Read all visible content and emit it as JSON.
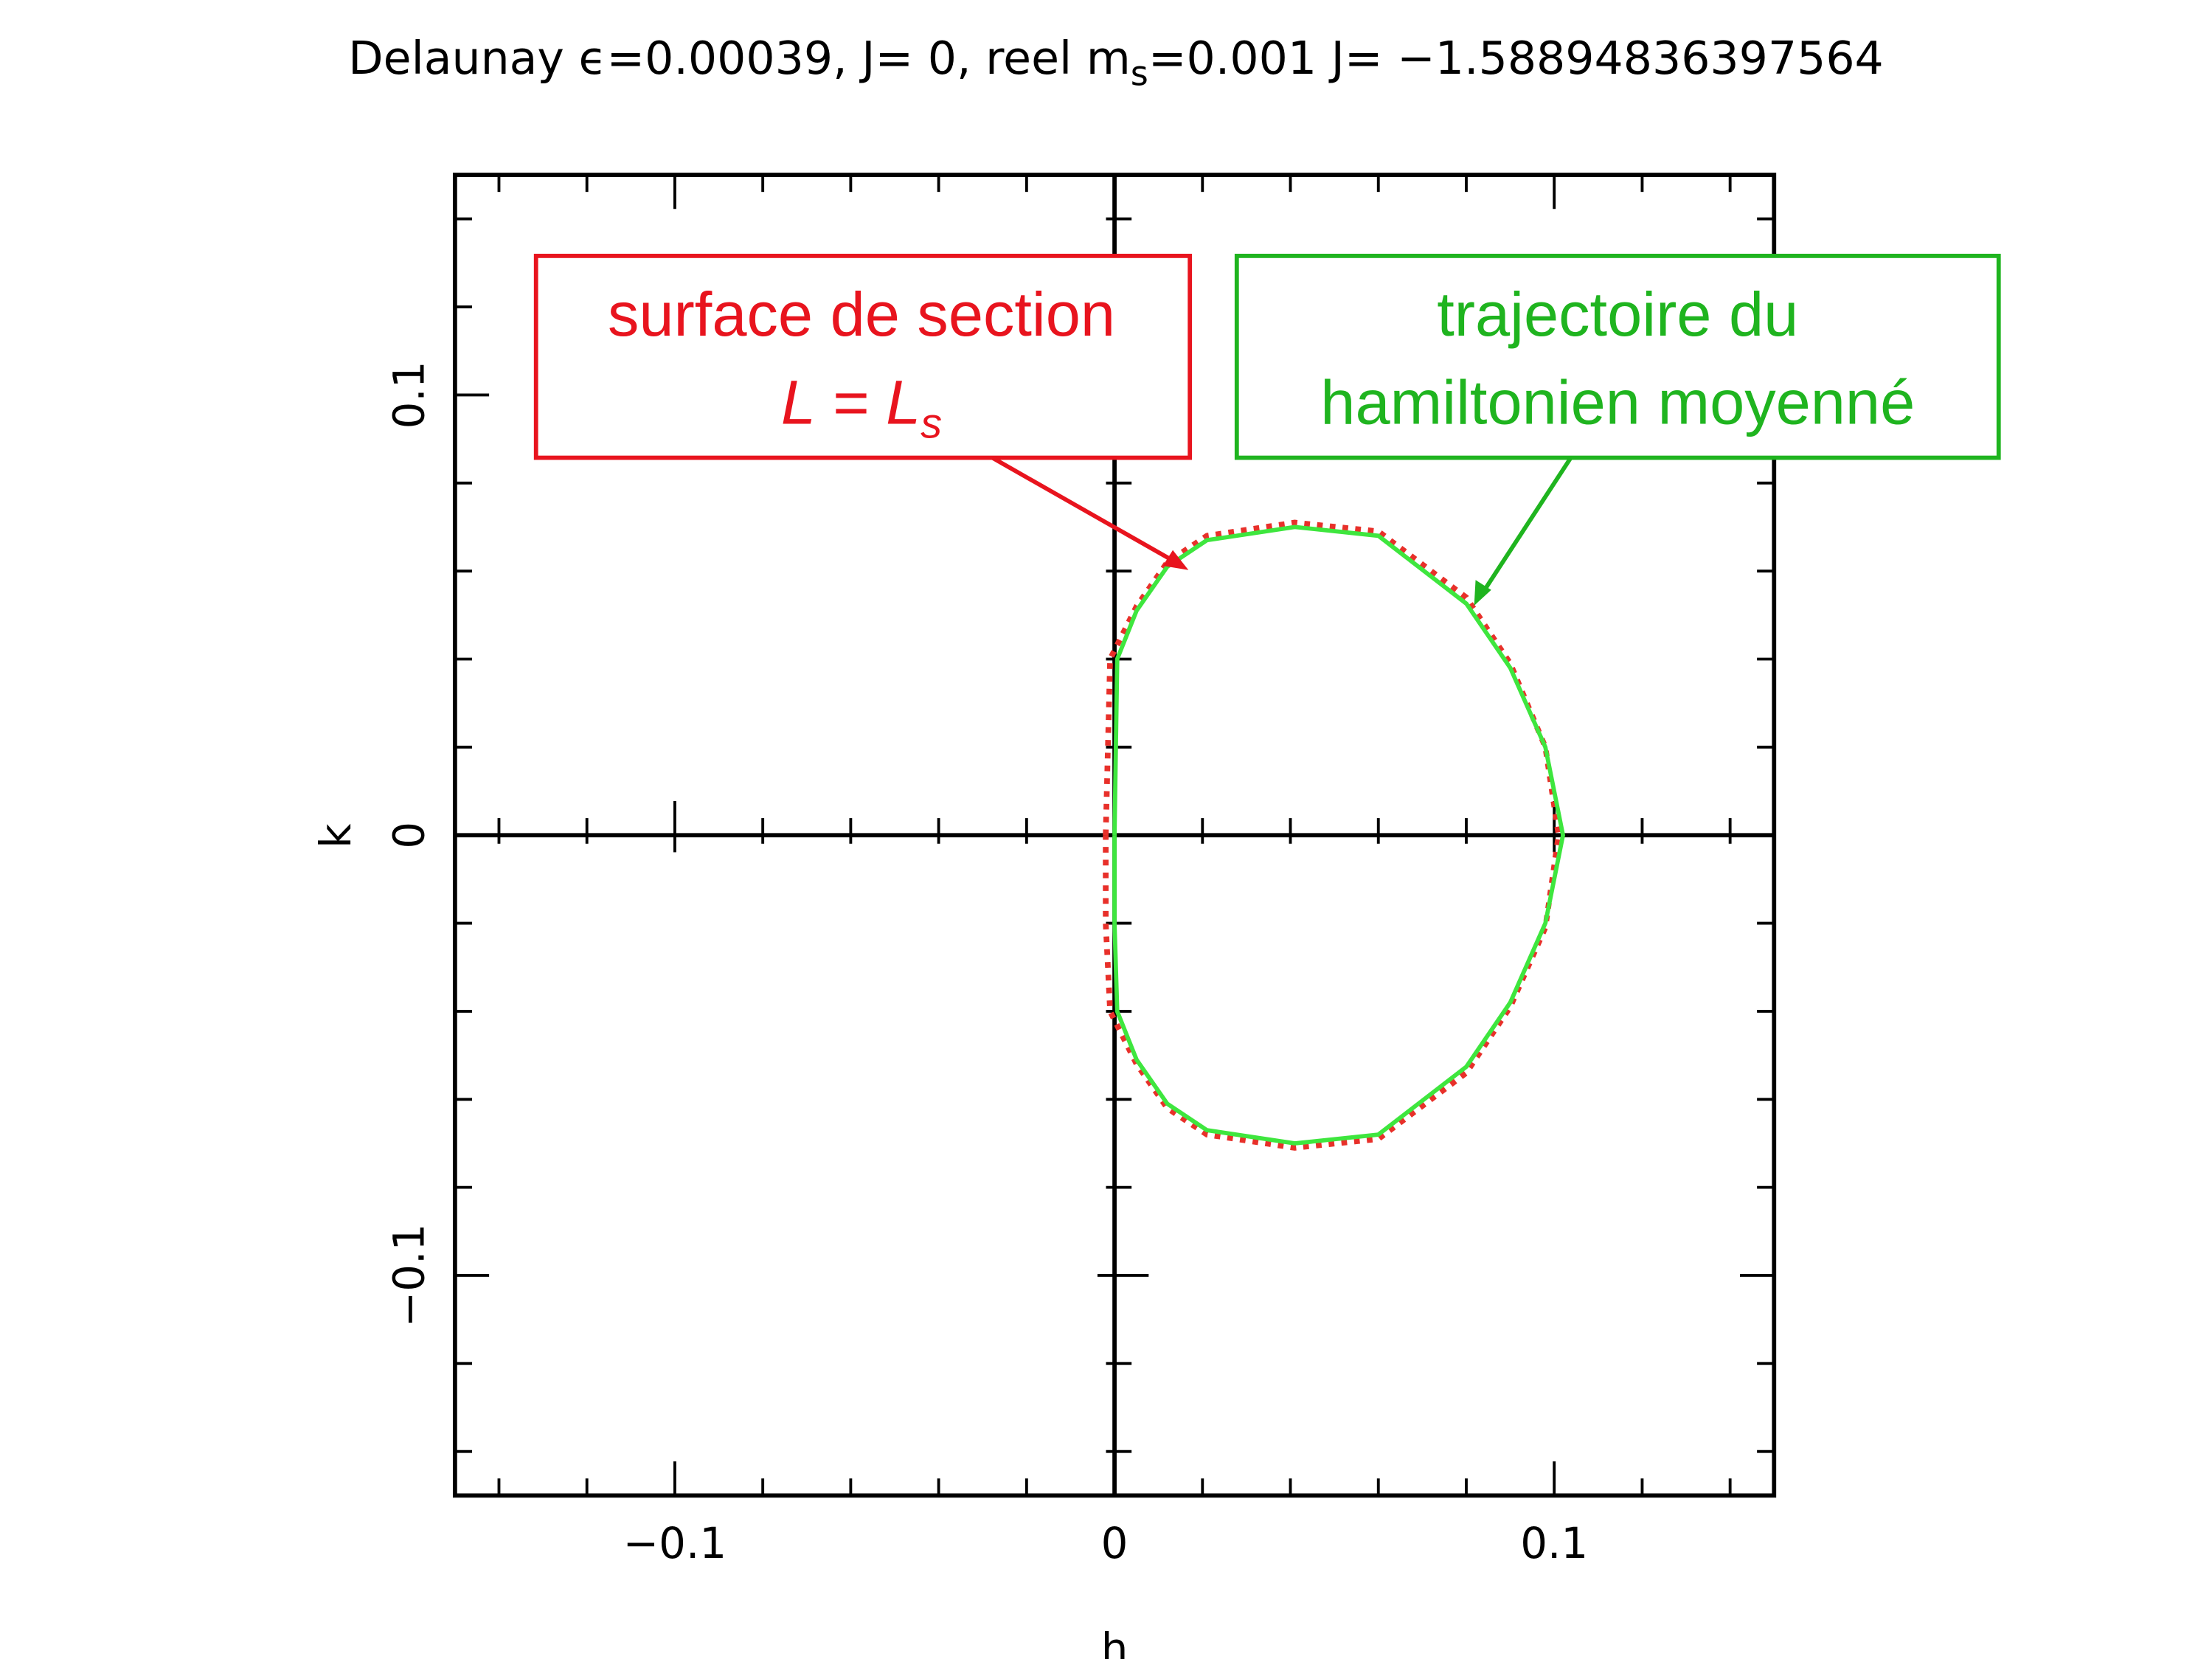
{
  "chart_data": {
    "type": "line",
    "title": "Delaunay ϵ=0.00039, J= 0, reel m",
    "title_sub": "s",
    "title_rest": "=0.001 J= −1.58894836397564",
    "x_label": "h",
    "y_label": "k",
    "xlim": [
      -0.15,
      0.15
    ],
    "ylim": [
      -0.15,
      0.15
    ],
    "xticks": [
      {
        "value": -0.1,
        "label": "−0.1"
      },
      0,
      0.1
    ],
    "yticks": [
      {
        "value": -0.1,
        "label": "−0.1"
      },
      0,
      0.1
    ],
    "minor_ticks": [
      -0.14,
      -0.12,
      -0.08,
      -0.06,
      -0.04,
      -0.02,
      0.02,
      0.04,
      0.06,
      0.08,
      0.12,
      0.14
    ],
    "series": [
      {
        "color": "#e8302a",
        "style": "dotted",
        "x": [
          -0.002,
          -0.001,
          0.005,
          0.012,
          0.021,
          0.041,
          0.06,
          0.08,
          0.09,
          0.098,
          0.101,
          0.098,
          0.09,
          0.08,
          0.06,
          0.041,
          0.021,
          0.012,
          0.005,
          -0.001,
          -0.002,
          -0.002
        ],
        "values": [
          0,
          0.04,
          0.052,
          0.062,
          0.068,
          0.071,
          0.069,
          0.054,
          0.039,
          0.02,
          0,
          -0.021,
          -0.039,
          -0.054,
          -0.069,
          -0.071,
          -0.068,
          -0.062,
          -0.052,
          -0.04,
          -0.02,
          0
        ]
      },
      {
        "color": "#3ee63e",
        "style": "solid",
        "x": [
          0,
          0.0006,
          0.005,
          0.012,
          0.021,
          0.041,
          0.06,
          0.08,
          0.09,
          0.098,
          0.102,
          0.098,
          0.09,
          0.08,
          0.06,
          0.041,
          0.021,
          0.012,
          0.005,
          0.0006,
          0,
          0
        ],
        "values": [
          0,
          0.04,
          0.051,
          0.061,
          0.067,
          0.07,
          0.068,
          0.0526,
          0.038,
          0.02,
          0,
          -0.02,
          -0.038,
          -0.0526,
          -0.068,
          -0.07,
          -0.067,
          -0.061,
          -0.051,
          -0.04,
          -0.02,
          0
        ]
      }
    ],
    "annotations": [
      {
        "lines": [
          "surface de section"
        ],
        "math_base": "L = L",
        "math_sub": "s",
        "color": "#e8141e"
      },
      {
        "lines": [
          "trajectoire du",
          "hamiltonien moyenné"
        ],
        "color": "#1fb41f"
      }
    ]
  }
}
